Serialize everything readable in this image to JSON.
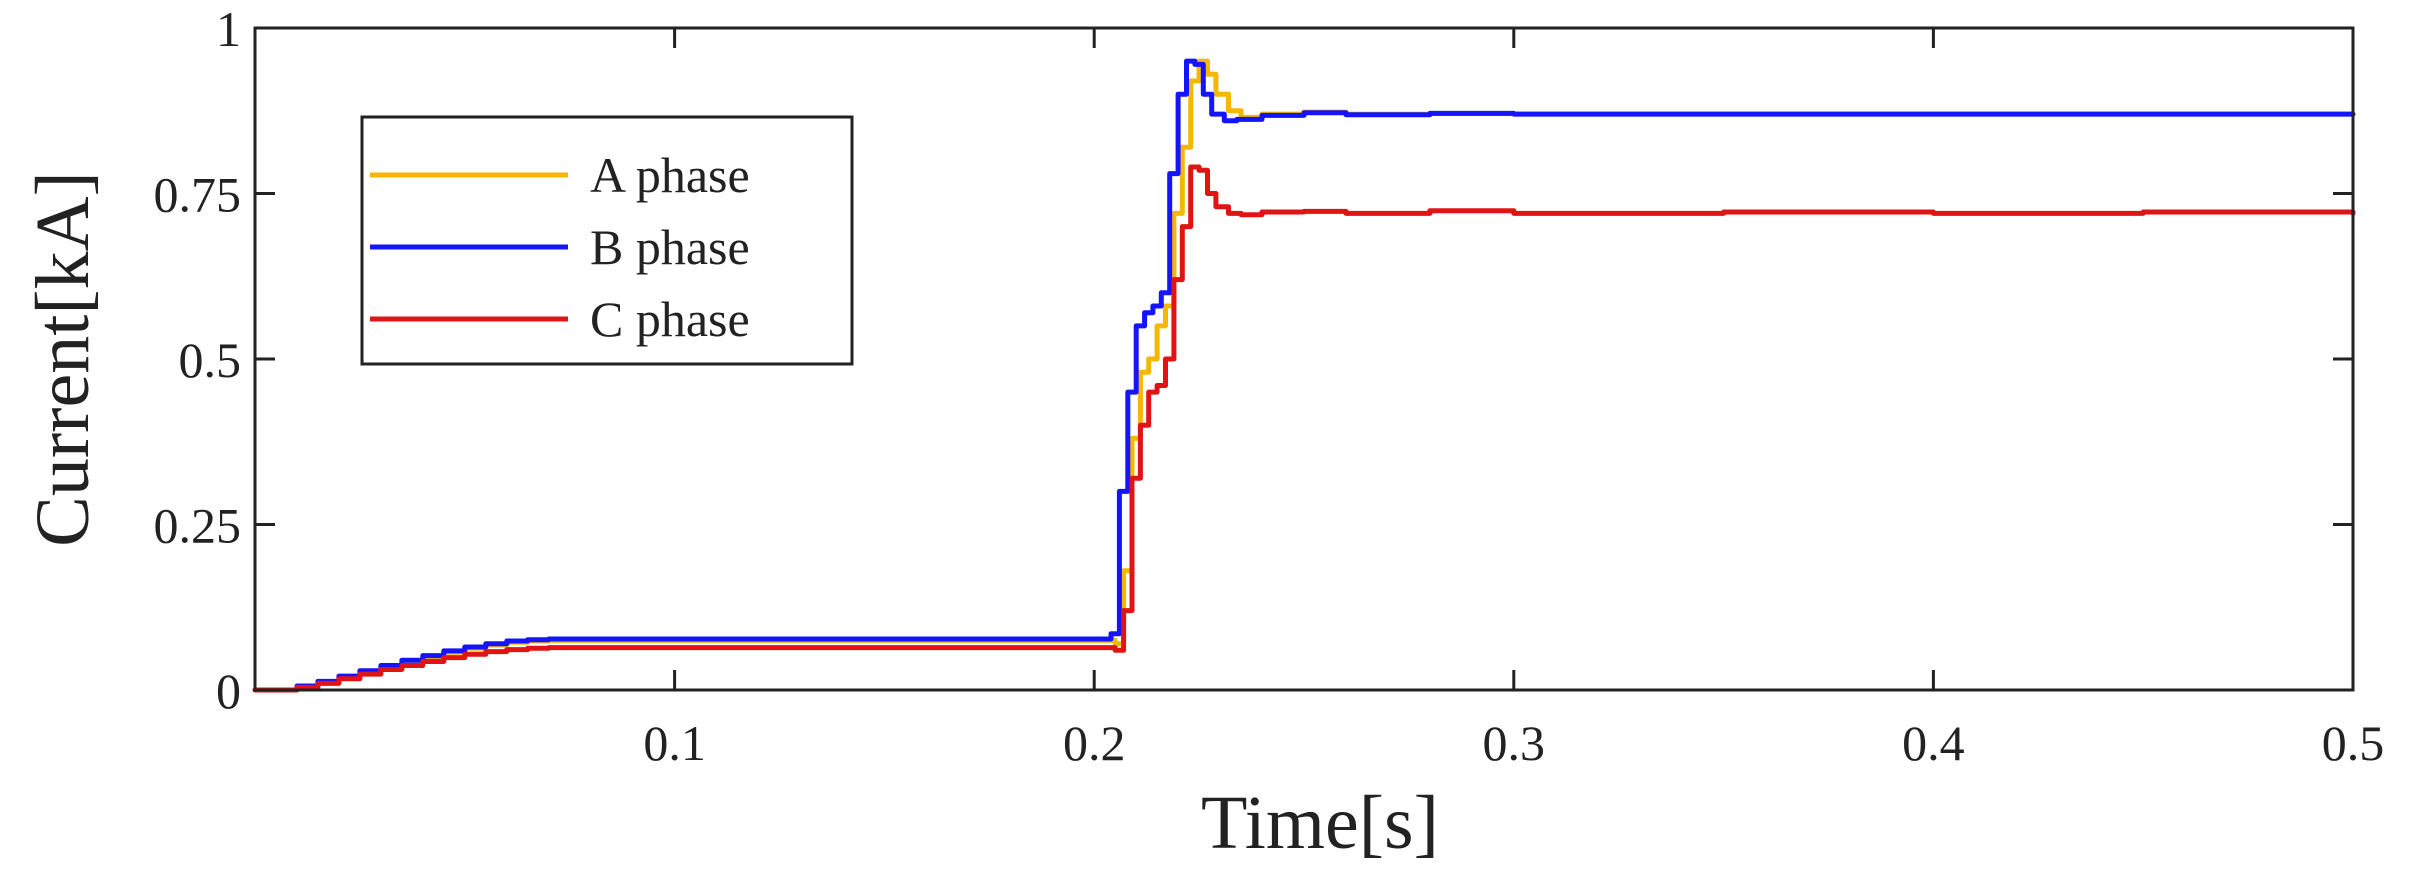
{
  "chart_data": {
    "type": "line",
    "title": "",
    "xlabel": "Time[s]",
    "ylabel": "Current[kA]",
    "xlim": [
      0,
      0.5
    ],
    "ylim": [
      0,
      1
    ],
    "xticks": [
      0.1,
      0.2,
      0.3,
      0.4,
      0.5
    ],
    "xtick_labels": [
      "0.1",
      "0.2",
      "0.3",
      "0.4",
      "0.5"
    ],
    "yticks": [
      0,
      0.25,
      0.5,
      0.75,
      1
    ],
    "ytick_labels": [
      "0",
      "0.25",
      "0.5",
      "0.75",
      "1"
    ],
    "grid": false,
    "legend_position": "top-left",
    "series": [
      {
        "name": "A phase",
        "color": "#f5b800",
        "x": [
          0,
          0.005,
          0.01,
          0.015,
          0.02,
          0.025,
          0.03,
          0.035,
          0.04,
          0.045,
          0.05,
          0.055,
          0.06,
          0.065,
          0.07,
          0.1,
          0.15,
          0.2,
          0.202,
          0.205,
          0.207,
          0.209,
          0.211,
          0.213,
          0.215,
          0.217,
          0.219,
          0.221,
          0.223,
          0.225,
          0.227,
          0.229,
          0.232,
          0.235,
          0.24,
          0.25,
          0.26,
          0.28,
          0.3,
          0.35,
          0.4,
          0.45,
          0.5
        ],
        "y": [
          0,
          0,
          0.005,
          0.012,
          0.02,
          0.028,
          0.035,
          0.043,
          0.05,
          0.057,
          0.063,
          0.068,
          0.072,
          0.074,
          0.075,
          0.075,
          0.075,
          0.075,
          0.075,
          0.07,
          0.18,
          0.38,
          0.48,
          0.5,
          0.55,
          0.58,
          0.72,
          0.82,
          0.92,
          0.95,
          0.93,
          0.9,
          0.875,
          0.865,
          0.87,
          0.873,
          0.87,
          0.871,
          0.87,
          0.87,
          0.87,
          0.87,
          0.87
        ]
      },
      {
        "name": "B phase",
        "color": "#1414ff",
        "x": [
          0,
          0.005,
          0.01,
          0.015,
          0.02,
          0.025,
          0.03,
          0.035,
          0.04,
          0.045,
          0.05,
          0.055,
          0.06,
          0.065,
          0.07,
          0.1,
          0.15,
          0.2,
          0.203,
          0.204,
          0.206,
          0.208,
          0.21,
          0.212,
          0.214,
          0.216,
          0.218,
          0.22,
          0.222,
          0.224,
          0.226,
          0.228,
          0.231,
          0.234,
          0.24,
          0.25,
          0.26,
          0.28,
          0.3,
          0.35,
          0.4,
          0.45,
          0.5
        ],
        "y": [
          0,
          0,
          0.006,
          0.013,
          0.021,
          0.029,
          0.037,
          0.045,
          0.052,
          0.059,
          0.065,
          0.07,
          0.074,
          0.076,
          0.077,
          0.077,
          0.077,
          0.077,
          0.077,
          0.085,
          0.3,
          0.45,
          0.55,
          0.57,
          0.58,
          0.6,
          0.78,
          0.9,
          0.95,
          0.945,
          0.9,
          0.87,
          0.86,
          0.862,
          0.868,
          0.872,
          0.869,
          0.871,
          0.87,
          0.87,
          0.87,
          0.87,
          0.87
        ]
      },
      {
        "name": "C phase",
        "color": "#e01414",
        "x": [
          0,
          0.005,
          0.01,
          0.015,
          0.02,
          0.025,
          0.03,
          0.035,
          0.04,
          0.045,
          0.05,
          0.055,
          0.06,
          0.065,
          0.07,
          0.1,
          0.15,
          0.2,
          0.203,
          0.205,
          0.207,
          0.209,
          0.211,
          0.213,
          0.215,
          0.217,
          0.219,
          0.221,
          0.223,
          0.225,
          0.227,
          0.229,
          0.232,
          0.235,
          0.24,
          0.25,
          0.26,
          0.28,
          0.3,
          0.35,
          0.4,
          0.45,
          0.5
        ],
        "y": [
          0,
          0,
          0.004,
          0.01,
          0.017,
          0.024,
          0.031,
          0.037,
          0.043,
          0.049,
          0.054,
          0.058,
          0.061,
          0.063,
          0.064,
          0.064,
          0.064,
          0.064,
          0.064,
          0.06,
          0.12,
          0.32,
          0.4,
          0.45,
          0.46,
          0.5,
          0.62,
          0.7,
          0.79,
          0.785,
          0.75,
          0.73,
          0.72,
          0.718,
          0.722,
          0.723,
          0.72,
          0.724,
          0.72,
          0.722,
          0.72,
          0.722,
          0.72
        ]
      }
    ]
  }
}
